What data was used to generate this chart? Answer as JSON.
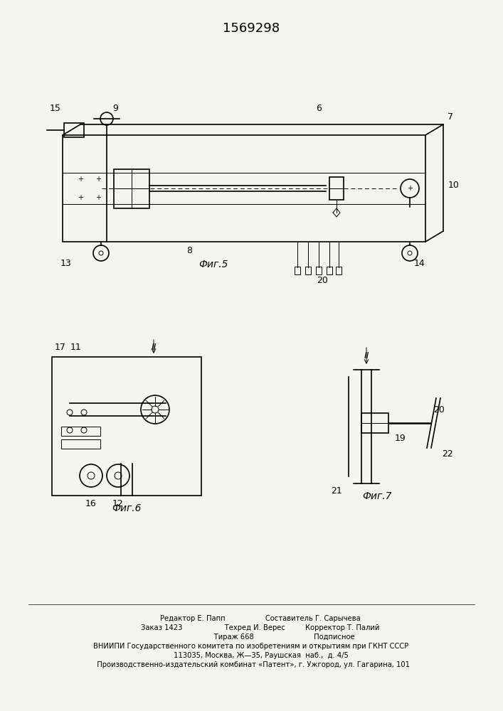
{
  "title": "1569298",
  "title_fontsize": 13,
  "bg_color": "#f4f4f0",
  "fig5_label": "Фиг.5",
  "fig6_label": "Фиг.6",
  "fig7_label": "Фиг.7",
  "footer_lines": [
    "        Редактор Е. Папп                  Составитель Г. Сарычева",
    "        Заказ 1423                   Техред И. Верес         Корректор Т. Палий",
    "                              Тираж 668                           Подписное",
    "ВНИИПИ Государственного комитета по изобретениям и открытиям при ГКНТ СССР",
    "         113035, Москва, Ж—35, Раушская  наб.,  д. 4/5",
    "  Производственно-издательский комбинат «Патент», г. Ужгород, ул. Гагарина, 101"
  ],
  "footer_fontsize": 7.2,
  "label_fontsize": 9
}
